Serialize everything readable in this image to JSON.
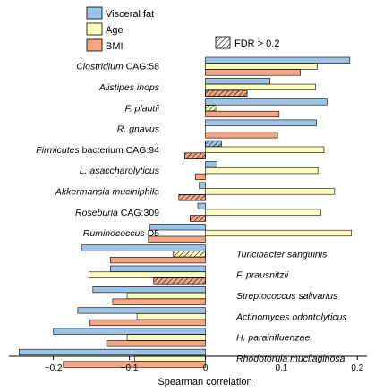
{
  "chart_data": {
    "type": "bar",
    "orientation": "horizontal",
    "xlabel": "Spearman correlation",
    "xlim": [
      -0.25,
      0.2
    ],
    "xticks": [
      -0.2,
      -0.1,
      0,
      0.1,
      0.2
    ],
    "xtick_labels": [
      "−0.2",
      "−0.1",
      "0",
      "0.1",
      "0.2"
    ],
    "legend": {
      "position": "top-left",
      "items": [
        {
          "label": "Visceral fat",
          "color": "#9dc3e6"
        },
        {
          "label": "Age",
          "color": "#ffffc0"
        },
        {
          "label": "BMI",
          "color": "#f4a582"
        }
      ],
      "fdr_label": "FDR > 0.2"
    },
    "series": [
      {
        "name": "Visceral fat",
        "color": "#9dc3e6"
      },
      {
        "name": "Age",
        "color": "#ffffc0"
      },
      {
        "name": "BMI",
        "color": "#f4a582"
      }
    ],
    "categories": [
      {
        "label": "Clostridium CAG:58",
        "italic": "Clostridium",
        "rest": " CAG:58",
        "label_side": "left",
        "values": [
          0.19,
          0.147,
          0.125
        ],
        "fdr_gt_02": [
          false,
          false,
          false
        ]
      },
      {
        "label": "Alistipes inops",
        "italic": "Alistipes inops",
        "rest": "",
        "label_side": "left",
        "values": [
          0.085,
          0.145,
          0.055
        ],
        "fdr_gt_02": [
          false,
          false,
          true
        ]
      },
      {
        "label": "F. plautii",
        "italic": "F. plautii",
        "rest": "",
        "label_side": "left",
        "values": [
          0.16,
          0.015,
          0.097
        ],
        "fdr_gt_02": [
          false,
          true,
          false
        ]
      },
      {
        "label": "R. gnavus",
        "italic": "R. gnavus",
        "rest": "",
        "label_side": "left",
        "values": [
          0.146,
          0.0,
          0.095
        ],
        "fdr_gt_02": [
          false,
          false,
          false
        ]
      },
      {
        "label": "Firmicutes bacterium CAG:94",
        "italic": "Firmicutes",
        "rest": " bacterium CAG:94",
        "label_side": "left",
        "values": [
          0.021,
          0.156,
          -0.027
        ],
        "fdr_gt_02": [
          true,
          false,
          true
        ]
      },
      {
        "label": "L. asaccharolyticus",
        "italic": "L. asaccharolyticus",
        "rest": "",
        "label_side": "left",
        "values": [
          0.015,
          0.148,
          -0.013
        ],
        "fdr_gt_02": [
          false,
          false,
          false
        ]
      },
      {
        "label": "Akkermansia muciniphila",
        "italic": "Akkermansia muciniphila",
        "rest": "",
        "label_side": "left",
        "values": [
          -0.008,
          0.17,
          -0.035
        ],
        "fdr_gt_02": [
          false,
          false,
          true
        ]
      },
      {
        "label": "Roseburia CAG:309",
        "italic": "Roseburia",
        "rest": " CAG:309",
        "label_side": "left",
        "values": [
          -0.01,
          0.152,
          -0.02
        ],
        "fdr_gt_02": [
          false,
          false,
          true
        ]
      },
      {
        "label": "Ruminococcus D5",
        "italic": "Ruminococcus",
        "rest": " D5",
        "label_side": "left",
        "values": [
          -0.073,
          0.192,
          -0.075
        ],
        "fdr_gt_02": [
          false,
          false,
          false
        ]
      },
      {
        "label": "Turicibacter sanguinis",
        "italic": "Turicibacter sanguinis",
        "rest": "",
        "label_side": "right",
        "values": [
          -0.163,
          -0.042,
          -0.125
        ],
        "fdr_gt_02": [
          false,
          true,
          false
        ]
      },
      {
        "label": "F. prausnitzii",
        "italic": "F. prausnitzii",
        "rest": "",
        "label_side": "right",
        "values": [
          -0.125,
          -0.153,
          -0.068
        ],
        "fdr_gt_02": [
          false,
          false,
          true
        ]
      },
      {
        "label": "Streptococcus salivarius",
        "italic": "Streptococcus salivarius",
        "rest": "",
        "label_side": "right",
        "values": [
          -0.148,
          -0.103,
          -0.122
        ],
        "fdr_gt_02": [
          false,
          false,
          false
        ]
      },
      {
        "label": "Actinomyces odontolyticus",
        "italic": "Actinomyces odontolyticus",
        "rest": "",
        "label_side": "right",
        "values": [
          -0.168,
          -0.09,
          -0.152
        ],
        "fdr_gt_02": [
          false,
          false,
          false
        ]
      },
      {
        "label": "H. parainfluenzae",
        "italic": "H. parainfluenzae",
        "rest": "",
        "label_side": "right",
        "values": [
          -0.2,
          -0.103,
          -0.13
        ],
        "fdr_gt_02": [
          false,
          false,
          false
        ]
      },
      {
        "label": "Rhodotorula mucilaginosa",
        "italic": "Rhodotorula mucilaginosa",
        "rest": "",
        "label_side": "right",
        "values": [
          -0.245,
          -0.093,
          -0.187
        ],
        "fdr_gt_02": [
          false,
          false,
          false
        ]
      }
    ]
  }
}
